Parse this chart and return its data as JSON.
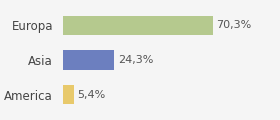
{
  "categories": [
    "America",
    "Asia",
    "Europa"
  ],
  "values": [
    5.4,
    24.3,
    70.3
  ],
  "labels": [
    "5,4%",
    "24,3%",
    "70,3%"
  ],
  "bar_colors": [
    "#e8c96b",
    "#6c7fbf",
    "#b5c98e"
  ],
  "background_color": "#f5f5f5",
  "xlim": [
    0,
    100
  ],
  "bar_height": 0.55
}
